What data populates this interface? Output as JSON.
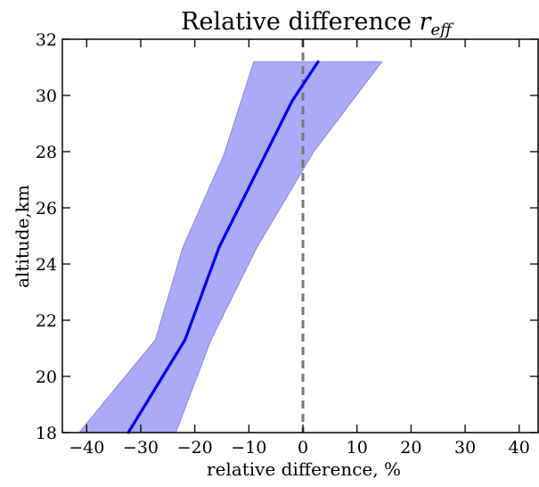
{
  "chart_data": {
    "type": "area",
    "title": "Relative difference ",
    "title_math": "r",
    "title_math_sub": "eff",
    "xlabel": "relative difference, %",
    "ylabel": "altitude,km",
    "xlim": [
      -44.5,
      43.5
    ],
    "ylim": [
      18,
      32
    ],
    "xticks": [
      -40,
      -30,
      -20,
      -10,
      0,
      10,
      20,
      30,
      40
    ],
    "xtick_labels": [
      "−40",
      "−30",
      "−20",
      "−10",
      "0",
      "10",
      "20",
      "30",
      "40"
    ],
    "yticks": [
      18,
      20,
      22,
      24,
      26,
      28,
      30,
      32
    ],
    "ytick_labels": [
      "18",
      "20",
      "22",
      "24",
      "26",
      "28",
      "30",
      "32"
    ],
    "grid": false,
    "reference_line": {
      "x": 0,
      "style": "dashed",
      "color": "#777777"
    },
    "band": {
      "color": "#aaaaf6",
      "edge_color": "#8888e8",
      "upper": [
        {
          "x": 14.6,
          "y": 31.2
        },
        {
          "x": 2.0,
          "y": 28.0
        },
        {
          "x": -8.5,
          "y": 24.6
        },
        {
          "x": -17.0,
          "y": 21.3
        },
        {
          "x": -23.5,
          "y": 18.0
        }
      ],
      "lower": [
        {
          "x": -9.1,
          "y": 31.2
        },
        {
          "x": -14.6,
          "y": 27.9
        },
        {
          "x": -22.2,
          "y": 24.6
        },
        {
          "x": -27.3,
          "y": 21.3
        },
        {
          "x": -41.4,
          "y": 18.0
        }
      ]
    },
    "series": [
      {
        "color": "#0000ee",
        "points": [
          {
            "x": 2.8,
            "y": 31.2
          },
          {
            "x": -2.0,
            "y": 29.8
          },
          {
            "x": -15.5,
            "y": 24.6
          },
          {
            "x": -21.8,
            "y": 21.3
          },
          {
            "x": -32.3,
            "y": 18.0
          }
        ]
      }
    ]
  }
}
